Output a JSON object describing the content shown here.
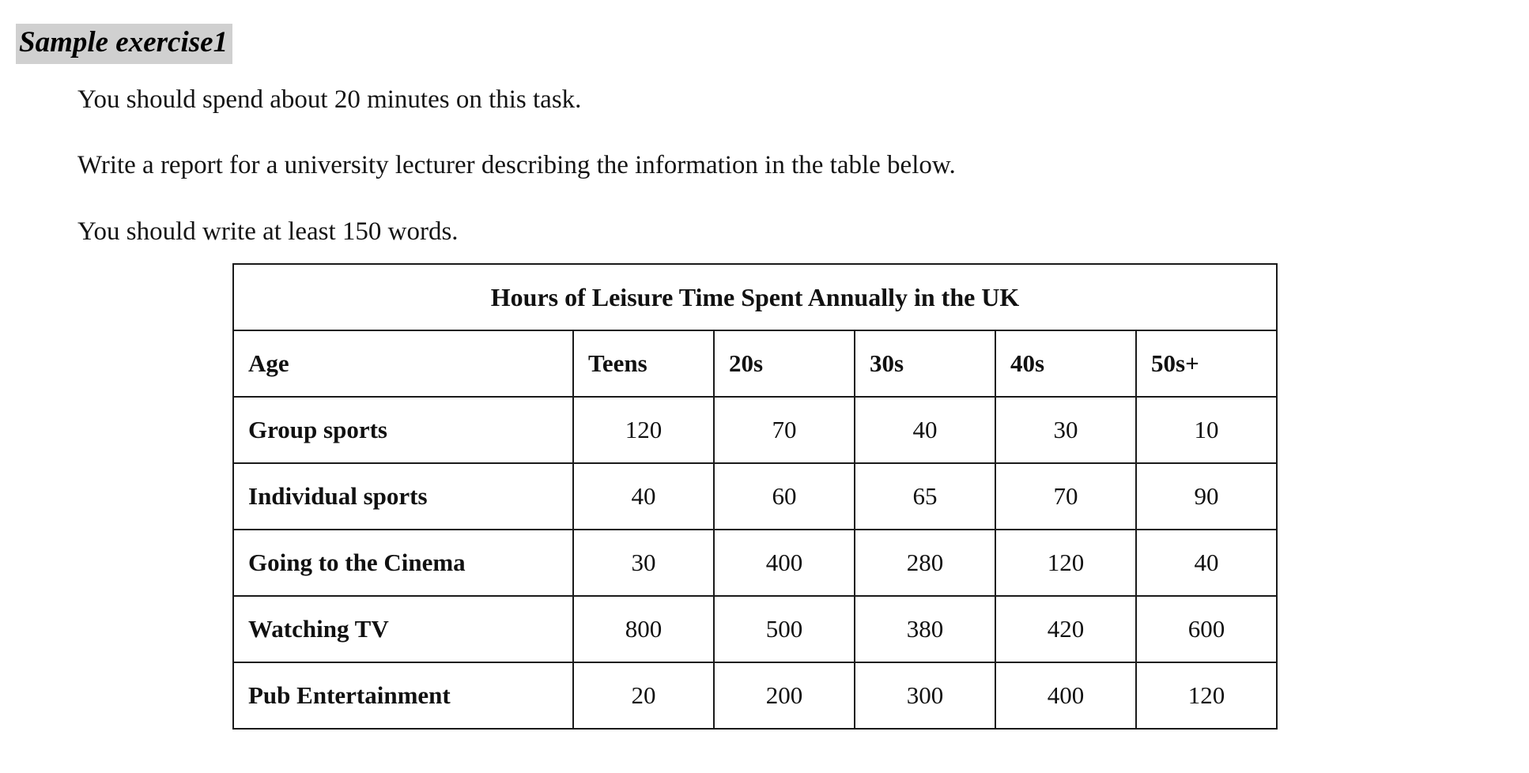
{
  "heading": "Sample exercise1",
  "instructions": [
    "You should spend about 20 minutes on this task.",
    "Write a report for a university lecturer describing the information in the table below.",
    "You should write at least 150 words."
  ],
  "table": {
    "caption": "Hours of Leisure Time Spent Annually in the UK",
    "header": [
      "Age",
      "Teens",
      "20s",
      "30s",
      "40s",
      "50s+"
    ],
    "rows": [
      {
        "label": "Group sports",
        "values": [
          "120",
          "70",
          "40",
          "30",
          "10"
        ]
      },
      {
        "label": "Individual sports",
        "values": [
          "40",
          "60",
          "65",
          "70",
          "90"
        ]
      },
      {
        "label": "Going to the Cinema",
        "values": [
          "30",
          "400",
          "280",
          "120",
          "40"
        ]
      },
      {
        "label": "Watching TV",
        "values": [
          "800",
          "500",
          "380",
          "420",
          "600"
        ]
      },
      {
        "label": "Pub Entertainment",
        "values": [
          "20",
          "200",
          "300",
          "400",
          "120"
        ]
      }
    ]
  }
}
